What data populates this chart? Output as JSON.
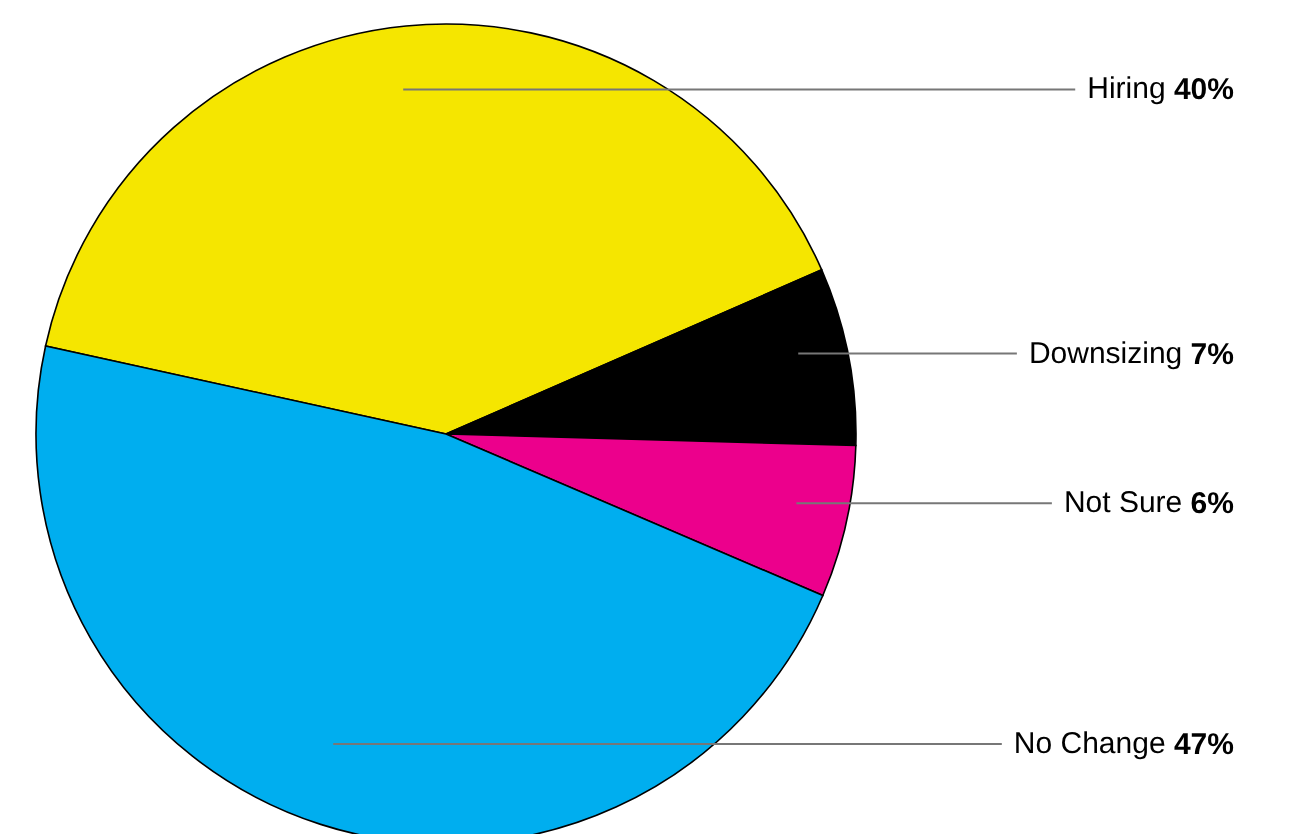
{
  "chart_data": {
    "type": "pie",
    "categories": [
      "Hiring",
      "Downsizing",
      "Not Sure",
      "No Change"
    ],
    "values": [
      40,
      7,
      6,
      47
    ],
    "value_labels": [
      "40%",
      "7%",
      "6%",
      "47%"
    ],
    "colors": [
      "#f5e600",
      "#000000",
      "#ec008c",
      "#00aeef"
    ]
  }
}
